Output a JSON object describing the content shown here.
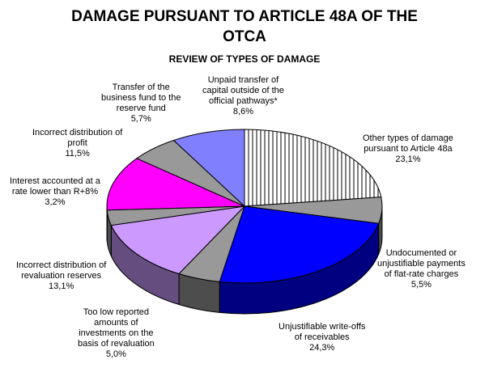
{
  "chart_data": {
    "type": "pie",
    "title_line1": "DAMAGE PURSUANT TO ARTICLE 48A OF THE",
    "title_line2": "OTCA",
    "subtitle": "REVIEW OF TYPES OF DAMAGE",
    "slices": [
      {
        "label_lines": [
          "Other types of damage",
          "pursuant to Article 48a"
        ],
        "value_text": "23,1%",
        "value": 23.1,
        "color": "#ffffff",
        "pattern": "hatch"
      },
      {
        "label_lines": [
          "Undocumented or",
          "unjustifiable payments",
          "of flat-rate charges"
        ],
        "value_text": "5,5%",
        "value": 5.5,
        "color": "#999999"
      },
      {
        "label_lines": [
          "Unjustifiable write-offs",
          "of receivables"
        ],
        "value_text": "24,3%",
        "value": 24.3,
        "color": "#0000ff"
      },
      {
        "label_lines": [
          "Too low reported",
          "amounts of",
          "investments on the",
          "basis of revaluation"
        ],
        "value_text": "5,0%",
        "value": 5.0,
        "color": "#999999"
      },
      {
        "label_lines": [
          "Incorrect distribution of",
          "revaluation reserves"
        ],
        "value_text": "13,1%",
        "value": 13.1,
        "color": "#cc99ff"
      },
      {
        "label_lines": [
          "Interest accounted at a",
          "rate lower than R+8%"
        ],
        "value_text": "3,2%",
        "value": 3.2,
        "color": "#999999"
      },
      {
        "label_lines": [
          "Incorrect distribution of",
          "profit"
        ],
        "value_text": "11,5%",
        "value": 11.5,
        "color": "#ff00ff"
      },
      {
        "label_lines": [
          "Transfer of the",
          "business fund to the",
          "reserve fund"
        ],
        "value_text": "5,7%",
        "value": 5.7,
        "color": "#999999"
      },
      {
        "label_lines": [
          "Unpaid transfer of",
          "capital outside of the",
          "official pathways*"
        ],
        "value_text": "8,6%",
        "value": 8.6,
        "color": "#8080ff"
      }
    ]
  }
}
